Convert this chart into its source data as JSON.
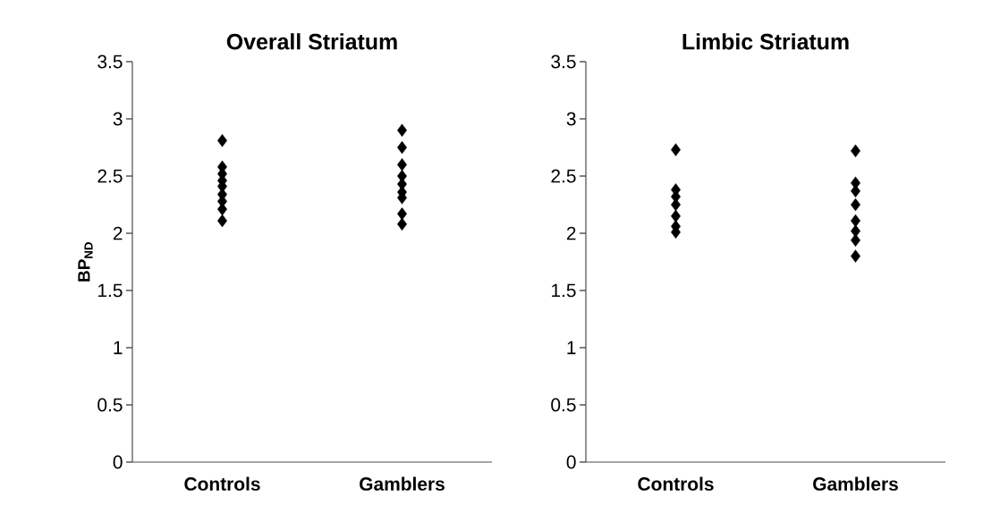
{
  "chart_data": [
    {
      "type": "scatter",
      "title": "Overall Striatum",
      "ylabel": "BP$_{ND}$",
      "categories": [
        "Controls",
        "Gamblers"
      ],
      "ylim": [
        0,
        3.5
      ],
      "yticks": [
        0,
        0.5,
        1,
        1.5,
        2,
        2.5,
        3,
        3.5
      ],
      "marker": "diamond",
      "grid": false,
      "series": [
        {
          "color": "#000000",
          "x": [
            "Controls",
            "Controls",
            "Controls",
            "Controls",
            "Controls",
            "Controls",
            "Controls",
            "Controls",
            "Controls"
          ],
          "values": [
            2.81,
            2.58,
            2.52,
            2.46,
            2.41,
            2.34,
            2.28,
            2.21,
            2.11
          ]
        },
        {
          "color": "#000000",
          "x": [
            "Gamblers",
            "Gamblers",
            "Gamblers",
            "Gamblers",
            "Gamblers",
            "Gamblers",
            "Gamblers",
            "Gamblers",
            "Gamblers"
          ],
          "values": [
            2.9,
            2.75,
            2.6,
            2.5,
            2.43,
            2.36,
            2.31,
            2.17,
            2.08
          ]
        }
      ]
    },
    {
      "type": "scatter",
      "title": "Limbic Striatum",
      "categories": [
        "Controls",
        "Gamblers"
      ],
      "ylim": [
        0,
        3.5
      ],
      "yticks": [
        0,
        0.5,
        1,
        1.5,
        2,
        2.5,
        3,
        3.5
      ],
      "marker": "diamond",
      "grid": false,
      "series": [
        {
          "color": "#000000",
          "x": [
            "Controls",
            "Controls",
            "Controls",
            "Controls",
            "Controls",
            "Controls",
            "Controls"
          ],
          "values": [
            2.73,
            2.38,
            2.32,
            2.25,
            2.15,
            2.06,
            2.01
          ]
        },
        {
          "color": "#000000",
          "x": [
            "Gamblers",
            "Gamblers",
            "Gamblers",
            "Gamblers",
            "Gamblers",
            "Gamblers",
            "Gamblers",
            "Gamblers"
          ],
          "values": [
            2.72,
            2.44,
            2.37,
            2.25,
            2.11,
            2.02,
            1.94,
            1.8
          ]
        }
      ]
    }
  ]
}
